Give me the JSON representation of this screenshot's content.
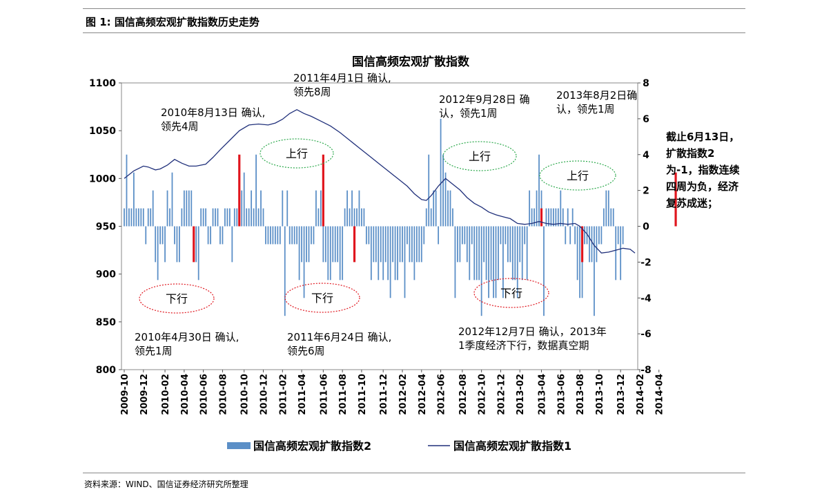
{
  "figure_label": "图 1:  国信高频宏观扩散指数历史走势",
  "source": "资料来源：WIND、国信证券经济研究所整理",
  "side_note": "截止6月13日，扩散指数2为-1，指数连续四周为负，经济复苏成迷；",
  "chart_data": {
    "type": "bar+line",
    "title": "国信高频宏观扩散指数",
    "left_axis": {
      "range": [
        800,
        1100
      ],
      "ticks": [
        "800",
        "850",
        "900",
        "950",
        "1000",
        "1050",
        "1100"
      ]
    },
    "right_axis": {
      "range": [
        -8,
        8
      ],
      "ticks": [
        "-8",
        "-6",
        "-4",
        "-2",
        "0",
        "2",
        "4",
        "6",
        "8"
      ]
    },
    "x_ticks": [
      "2009-10",
      "2009-12",
      "2010-02",
      "2010-04",
      "2010-06",
      "2010-08",
      "2010-10",
      "2010-12",
      "2011-02",
      "2011-04",
      "2011-06",
      "2011-08",
      "2011-10",
      "2011-12",
      "2012-02",
      "2012-04",
      "2012-06",
      "2012-08",
      "2012-10",
      "2012-12",
      "2013-02",
      "2013-04",
      "2013-06",
      "2013-08",
      "2013-10",
      "2013-12",
      "2014-02",
      "2014-04"
    ],
    "legend": [
      "国信高频宏观扩散指数2",
      "国信高频宏观扩散指数1"
    ],
    "series": [
      {
        "name": "国信高频宏观扩散指数1",
        "type": "line",
        "axis": "left",
        "color": "#1f2f7a",
        "points": [
          [
            0,
            1000
          ],
          [
            4,
            1008
          ],
          [
            8,
            1013
          ],
          [
            10,
            1012
          ],
          [
            13,
            1009
          ],
          [
            15,
            1010
          ],
          [
            18,
            1014
          ],
          [
            21,
            1020
          ],
          [
            24,
            1016
          ],
          [
            27,
            1013
          ],
          [
            30,
            1013
          ],
          [
            34,
            1015
          ],
          [
            37,
            1022
          ],
          [
            40,
            1030
          ],
          [
            44,
            1040
          ],
          [
            48,
            1050
          ],
          [
            52,
            1056
          ],
          [
            56,
            1057
          ],
          [
            60,
            1056
          ],
          [
            63,
            1058
          ],
          [
            66,
            1062
          ],
          [
            69,
            1068
          ],
          [
            72,
            1072
          ],
          [
            75,
            1068
          ],
          [
            78,
            1065
          ],
          [
            82,
            1060
          ],
          [
            86,
            1055
          ],
          [
            90,
            1048
          ],
          [
            94,
            1040
          ],
          [
            98,
            1032
          ],
          [
            102,
            1024
          ],
          [
            106,
            1016
          ],
          [
            110,
            1008
          ],
          [
            114,
            1000
          ],
          [
            118,
            992
          ],
          [
            121,
            984
          ],
          [
            124,
            978
          ],
          [
            126,
            977
          ],
          [
            128,
            982
          ],
          [
            131,
            992
          ],
          [
            134,
            1000
          ],
          [
            137,
            994
          ],
          [
            140,
            988
          ],
          [
            143,
            980
          ],
          [
            146,
            974
          ],
          [
            149,
            970
          ],
          [
            152,
            965
          ],
          [
            155,
            962
          ],
          [
            158,
            960
          ],
          [
            161,
            958
          ],
          [
            164,
            953
          ],
          [
            167,
            952
          ],
          [
            170,
            953
          ],
          [
            173,
            955
          ],
          [
            176,
            953
          ],
          [
            179,
            952
          ],
          [
            182,
            953
          ],
          [
            185,
            952
          ],
          [
            188,
            953
          ],
          [
            190,
            950
          ],
          [
            193,
            942
          ],
          [
            196,
            930
          ],
          [
            199,
            922
          ],
          [
            202,
            923
          ],
          [
            205,
            925
          ],
          [
            208,
            927
          ],
          [
            211,
            926
          ],
          [
            213,
            922
          ]
        ]
      },
      {
        "name": "国信高频宏观扩散指数2",
        "type": "bar",
        "axis": "right",
        "color": "#5b8fc7",
        "values": [
          1,
          4,
          1,
          1,
          3,
          1,
          1,
          1,
          1,
          -1,
          1,
          1,
          2,
          -2,
          -3,
          -1,
          -1,
          -2,
          2,
          1,
          3,
          -1,
          -2,
          -2,
          1,
          2,
          2,
          2,
          2,
          -1,
          -2,
          -3,
          1,
          1,
          1,
          -1,
          -1,
          1,
          1,
          1,
          -1,
          -1,
          1,
          1,
          1,
          -2,
          1,
          1,
          2,
          2,
          3,
          1,
          1,
          2,
          1,
          4,
          1,
          2,
          1,
          -1,
          -1,
          -1,
          -1,
          -1,
          -1,
          -1,
          2,
          -5,
          2,
          -1,
          -1,
          -1,
          -1,
          -3,
          -2,
          -4,
          -2,
          -2,
          -1,
          -1,
          2,
          1,
          2,
          -2,
          -2,
          -3,
          -3,
          -2,
          -2,
          -2,
          -3,
          -3,
          1,
          2,
          1,
          2,
          1,
          1,
          2,
          1,
          1,
          -1,
          -1,
          -3,
          -2,
          -2,
          -3,
          -2,
          -3,
          -2,
          -3,
          -4,
          -2,
          -3,
          -3,
          -2,
          -2,
          -4,
          -1,
          -2,
          -2,
          -3,
          -2,
          -2,
          -2,
          -1,
          1,
          4,
          1,
          2,
          2,
          -1,
          6,
          4,
          3,
          2,
          2,
          1,
          -4,
          -2,
          -2,
          -1,
          -1,
          -2,
          -3,
          -1,
          -3,
          -3,
          -3,
          -5,
          -2,
          -3,
          -4,
          -3,
          -4,
          -4,
          -3,
          -1,
          -4,
          -1,
          -2,
          -2,
          -3,
          -3,
          -4,
          -2,
          -3,
          -1,
          -3,
          2,
          1,
          1,
          2,
          4,
          2,
          -5,
          1,
          1,
          1,
          1,
          1,
          1,
          2,
          1,
          -1,
          1,
          -1,
          1,
          -1,
          -3,
          -4,
          -4,
          -1,
          -1,
          -2,
          -2,
          -5,
          -2,
          -1,
          -1,
          1,
          2,
          2,
          1,
          1,
          -3,
          -1,
          -3,
          -1
        ]
      }
    ],
    "highlight_bars": [
      {
        "x": 29,
        "value": -2
      },
      {
        "x": 48,
        "value": 4
      },
      {
        "x": 83,
        "value": 4
      },
      {
        "x": 96,
        "value": -2
      },
      {
        "x": 174,
        "value": 1
      },
      {
        "x": 191,
        "value": -2
      },
      {
        "x": 230,
        "value": 3
      }
    ],
    "annotations": [
      {
        "lines": [
          "2010年8月13日 确认,",
          "领先4周"
        ]
      },
      {
        "lines": [
          "2011年4月1日 确认,",
          "领先8周"
        ]
      },
      {
        "lines": [
          "2012年9月28日 确",
          "认，领先1周"
        ]
      },
      {
        "lines": [
          "2013年8月2日确",
          "认，领先1周"
        ]
      },
      {
        "lines": [
          "2010年4月30日 确认,",
          "领先1周"
        ]
      },
      {
        "lines": [
          "2011年6月24日 确认,",
          "领先6周"
        ]
      },
      {
        "lines": [
          "2012年12月7日 确认，2013年",
          "1季度经济下行，数据真空期"
        ]
      }
    ],
    "ellipse_labels": [
      "上行",
      "上行",
      "上行",
      "下行",
      "下行",
      "下行"
    ]
  }
}
